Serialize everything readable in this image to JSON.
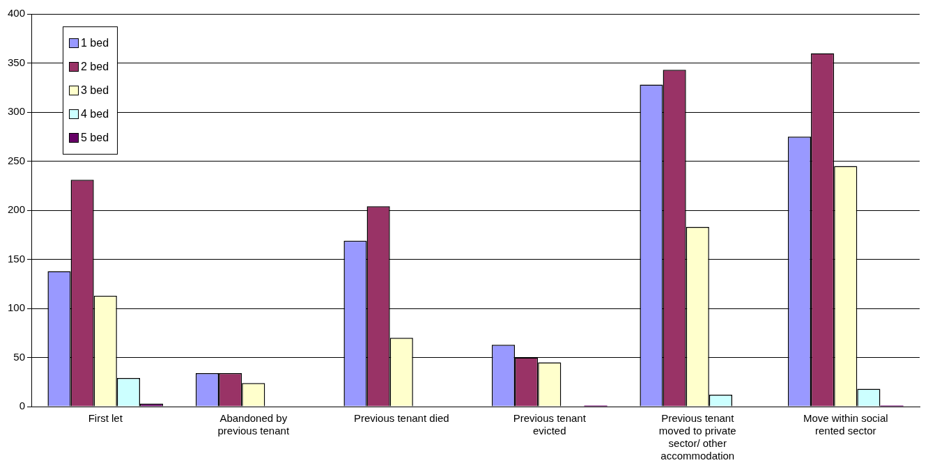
{
  "chart_data": {
    "type": "bar",
    "categories": [
      "First let",
      "Abandoned by previous tenant",
      "Previous tenant died",
      "Previous tenant evicted",
      "Previous tenant moved to private sector/ other accommodation",
      "Move within social rented sector"
    ],
    "series": [
      {
        "name": "1 bed",
        "color": "#9999ff",
        "values": [
          138,
          34,
          169,
          63,
          328,
          275
        ]
      },
      {
        "name": "2 bed",
        "color": "#993366",
        "values": [
          231,
          34,
          204,
          50,
          343,
          360
        ]
      },
      {
        "name": "3 bed",
        "color": "#ffffcc",
        "values": [
          113,
          24,
          70,
          45,
          183,
          245
        ]
      },
      {
        "name": "4 bed",
        "color": "#ccffff",
        "values": [
          29,
          0,
          0,
          0,
          12,
          18
        ]
      },
      {
        "name": "5 bed",
        "color": "#660066",
        "values": [
          3,
          0,
          0,
          1,
          0,
          1
        ]
      }
    ],
    "ylim": [
      0,
      400
    ],
    "yticks": [
      0,
      50,
      100,
      150,
      200,
      250,
      300,
      350,
      400
    ],
    "grid": "y",
    "legend": "top left"
  }
}
